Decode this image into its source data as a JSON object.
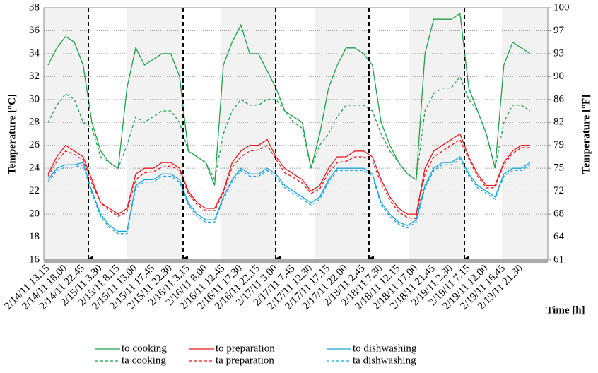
{
  "chart_data": {
    "type": "line",
    "y_label": "Temperature  [°C]",
    "y2_label": "Temperature  [°F]",
    "x_label": "Time  [h]",
    "categories": [
      "2/14/11 13.15",
      null,
      "2/14/11 18.00",
      null,
      "2/14/11 22.45",
      null,
      "2/15/11 3.30",
      null,
      "2/15/11 8.15",
      null,
      "2/15/11 13.00",
      null,
      "2/15/11 17.45",
      null,
      "2/15/11 22.30",
      null,
      "2/16/11 3.15",
      null,
      "2/16/11 8.00",
      null,
      "2/16/11 12.45",
      null,
      "2/16/11 17.30",
      null,
      "2/16/11 22.15",
      null,
      "2/17/11 3.00",
      null,
      "2/17/11 7.45",
      null,
      "2/17/11 12.30",
      null,
      "2/17/11 17.15",
      null,
      "2/17/11 22.00",
      null,
      "2/18/11 2.45",
      null,
      "2/18/11 7.30",
      null,
      "2/18/11 12.15",
      null,
      "2/18/11 17.00",
      null,
      "2/18/11 21.45",
      null,
      "2/19/11 2.30",
      null,
      "2/19/11 7.15",
      null,
      "2/19/11 12.00",
      null,
      "2/19/11 16.45",
      null,
      "2/19/11 21.30",
      null
    ],
    "series": [
      {
        "name": "to cooking",
        "color": "#1fa04a",
        "dashed": false,
        "values": [
          33,
          34.5,
          35.5,
          35,
          33,
          28,
          25.5,
          24.5,
          24,
          31,
          34.5,
          33,
          33.5,
          34,
          34,
          32,
          25.5,
          25,
          24.5,
          22.5,
          33,
          35,
          36.5,
          34,
          34,
          32.5,
          31,
          29,
          28.5,
          28,
          24,
          27,
          31,
          33,
          34.5,
          34.5,
          34,
          33,
          28,
          26,
          24.5,
          23.5,
          23,
          34,
          37,
          37,
          37,
          37.5,
          31,
          29,
          27,
          24,
          33,
          35,
          34.5,
          34
        ]
      },
      {
        "name": "to preparation",
        "color": "#e8191e",
        "dashed": false,
        "values": [
          23.5,
          25,
          26,
          25.5,
          25,
          23,
          21,
          20.5,
          20,
          20.5,
          23.5,
          24,
          24,
          24.5,
          24.5,
          24,
          22,
          21,
          20.5,
          20.5,
          22,
          24.5,
          25.5,
          26,
          26,
          26.5,
          25,
          24,
          23.5,
          23,
          22,
          22.5,
          24,
          25,
          25,
          25.5,
          25.5,
          25,
          23,
          21.5,
          20.5,
          20,
          20,
          24,
          25.5,
          26,
          26.5,
          27,
          25,
          23.5,
          22.5,
          22.5,
          24.5,
          25.5,
          26,
          26
        ]
      },
      {
        "name": "to dishwashing",
        "color": "#1aa3dc",
        "dashed": false,
        "values": [
          23,
          24,
          24.3,
          24.3,
          24.5,
          22,
          20,
          19,
          18.5,
          18.5,
          22.5,
          23,
          23,
          23.5,
          23.5,
          23,
          21,
          20,
          19.5,
          19.5,
          21.5,
          23,
          24,
          23.5,
          23.5,
          24,
          23.5,
          22.5,
          22,
          21.5,
          21,
          21.5,
          23,
          24,
          24,
          24,
          24,
          23.5,
          21,
          20,
          19.3,
          19,
          19.5,
          22.5,
          24,
          24.5,
          24.5,
          25,
          23.5,
          22.5,
          22,
          21.5,
          23.5,
          24,
          24,
          24.5
        ]
      },
      {
        "name": "ta cooking",
        "color": "#1fa04a",
        "dashed": true,
        "values": [
          28,
          29.5,
          30.5,
          30,
          28,
          27.5,
          25,
          24.5,
          24,
          26,
          28.5,
          28,
          28.5,
          29,
          29,
          28,
          25.5,
          25,
          24.5,
          23,
          27,
          29,
          30,
          29.5,
          29.5,
          30,
          30,
          29,
          28,
          27.5,
          24,
          26,
          27,
          28.5,
          29.5,
          29.5,
          29.5,
          29,
          27,
          25.5,
          24.5,
          23.5,
          23,
          29,
          30.5,
          31,
          31,
          32,
          30,
          29,
          27,
          24,
          28,
          29.5,
          29.5,
          29
        ]
      },
      {
        "name": "ta preparation",
        "color": "#e8191e",
        "dashed": true,
        "values": [
          23.3,
          24.6,
          25.5,
          25.2,
          24.7,
          22.7,
          21,
          20.3,
          19.8,
          20.2,
          23,
          23.6,
          23.7,
          24.1,
          24.2,
          23.8,
          21.8,
          20.8,
          20.3,
          20.3,
          21.8,
          24.1,
          25,
          25.5,
          25.6,
          26,
          24.8,
          23.6,
          23.2,
          22.7,
          21.8,
          22.2,
          23.6,
          24.5,
          24.6,
          25,
          25,
          24.6,
          22.7,
          21.2,
          20.2,
          19.7,
          19.6,
          23.5,
          25,
          25.5,
          26,
          26.5,
          24.8,
          23.3,
          22.3,
          22.3,
          24.3,
          25.3,
          25.8,
          25.8
        ]
      },
      {
        "name": "ta dishwashing",
        "color": "#1aa3dc",
        "dashed": true,
        "values": [
          22.8,
          23.8,
          24.1,
          24.1,
          24.3,
          21.8,
          19.8,
          18.8,
          18.3,
          18.3,
          22.3,
          22.8,
          22.8,
          23.3,
          23.3,
          22.8,
          20.8,
          19.8,
          19.3,
          19.3,
          21.3,
          22.8,
          23.8,
          23.3,
          23.3,
          23.8,
          23.3,
          22.3,
          21.8,
          21.3,
          20.8,
          21.3,
          22.8,
          23.8,
          23.8,
          23.8,
          23.8,
          23.3,
          20.8,
          19.8,
          19.1,
          18.8,
          19.3,
          22.3,
          23.8,
          24.3,
          24.3,
          24.8,
          23.3,
          22.3,
          21.8,
          21.3,
          23.3,
          23.8,
          23.8,
          24.3
        ]
      }
    ],
    "ylim": [
      16,
      38
    ],
    "yticks": [
      16,
      18,
      20,
      22,
      24,
      26,
      28,
      30,
      32,
      34,
      36,
      38
    ],
    "y2lim": [
      60.8,
      100.4
    ],
    "y2ticks": [
      {
        "value": 60.8,
        "label": "61"
      },
      {
        "value": 64.4,
        "label": "64"
      },
      {
        "value": 68,
        "label": "68"
      },
      {
        "value": 71.6,
        "label": "72"
      },
      {
        "value": 75.2,
        "label": "75"
      },
      {
        "value": 78.8,
        "label": "79"
      },
      {
        "value": 82.4,
        "label": "82"
      },
      {
        "value": 86,
        "label": "86"
      },
      {
        "value": 89.6,
        "label": "90"
      },
      {
        "value": 93.2,
        "label": "93"
      },
      {
        "value": 96.8,
        "label": "97"
      },
      {
        "value": 100.4,
        "label": "100"
      }
    ],
    "grid": true,
    "legend": "bottom"
  }
}
